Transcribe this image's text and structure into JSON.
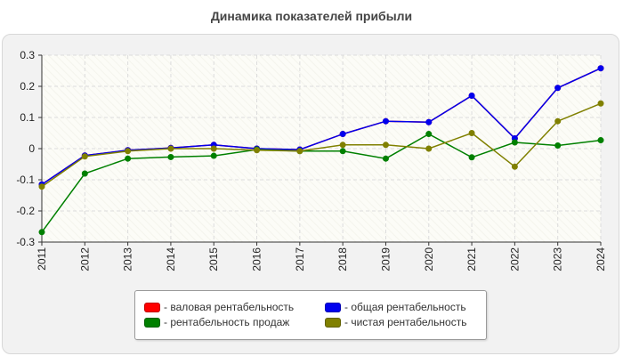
{
  "chart_data": {
    "type": "line",
    "title": "Динамика показателей прибыли",
    "x": [
      "2011",
      "2012",
      "2013",
      "2014",
      "2015",
      "2016",
      "2017",
      "2018",
      "2019",
      "2020",
      "2021",
      "2022",
      "2023",
      "2024"
    ],
    "ylim": [
      -0.3,
      0.3
    ],
    "yticks": [
      "-0.3",
      "-0.2",
      "-0.1",
      "0",
      "0.1",
      "0.2",
      "0.3"
    ],
    "ytick_values": [
      -0.3,
      -0.2,
      -0.1,
      0,
      0.1,
      0.2,
      0.3
    ],
    "grid": true,
    "legend_position": "bottom",
    "series": [
      {
        "name": "- валовая рентабельность",
        "color": "#ff0000",
        "values": [
          -0.115,
          -0.022,
          -0.005,
          0.002,
          0.012,
          0.0,
          -0.003,
          0.047,
          0.088,
          0.085,
          0.17,
          0.033,
          0.195,
          0.258
        ]
      },
      {
        "name": "- общая рентабельность",
        "color": "#0000ee",
        "values": [
          -0.115,
          -0.022,
          -0.005,
          0.002,
          0.012,
          0.0,
          -0.003,
          0.047,
          0.088,
          0.085,
          0.17,
          0.033,
          0.195,
          0.258
        ]
      },
      {
        "name": "- рентабельность продаж",
        "color": "#008000",
        "values": [
          -0.268,
          -0.08,
          -0.032,
          -0.027,
          -0.023,
          -0.003,
          -0.008,
          -0.008,
          -0.032,
          0.047,
          -0.028,
          0.02,
          0.01,
          0.027
        ]
      },
      {
        "name": "- чистая рентабельность",
        "color": "#808000",
        "values": [
          -0.122,
          -0.025,
          -0.008,
          0.0,
          0.0,
          -0.005,
          -0.008,
          0.012,
          0.012,
          0.0,
          0.05,
          -0.058,
          0.088,
          0.145
        ]
      }
    ]
  }
}
